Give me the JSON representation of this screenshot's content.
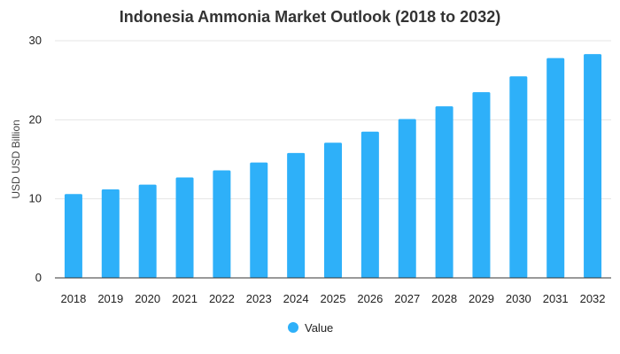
{
  "chart_data": {
    "type": "bar",
    "title": "Indonesia Ammonia Market Outlook (2018 to 2032)",
    "xlabel": "",
    "ylabel": "USD USD Billion",
    "categories": [
      "2018",
      "2019",
      "2020",
      "2021",
      "2022",
      "2023",
      "2024",
      "2025",
      "2026",
      "2027",
      "2028",
      "2029",
      "2030",
      "2031",
      "2032"
    ],
    "series": [
      {
        "name": "Value",
        "color": "#2eb0f9",
        "values": [
          10.6,
          11.2,
          11.8,
          12.7,
          13.6,
          14.6,
          15.8,
          17.1,
          18.5,
          20.1,
          21.7,
          23.5,
          25.5,
          27.8,
          28.3
        ]
      }
    ],
    "ylim": [
      0,
      30
    ],
    "yticks": [
      0,
      10,
      20,
      30
    ],
    "grid": true,
    "legend_position": "bottom-center"
  }
}
